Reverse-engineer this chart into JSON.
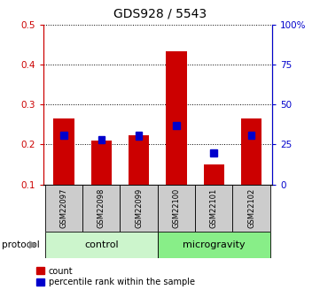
{
  "title": "GDS928 / 5543",
  "samples": [
    "GSM22097",
    "GSM22098",
    "GSM22099",
    "GSM22100",
    "GSM22101",
    "GSM22102"
  ],
  "red_values": [
    0.265,
    0.21,
    0.222,
    0.432,
    0.15,
    0.265
  ],
  "blue_values": [
    0.223,
    0.212,
    0.222,
    0.248,
    0.178,
    0.223
  ],
  "ylim_left": [
    0.1,
    0.5
  ],
  "ylim_right": [
    0,
    100
  ],
  "yticks_left": [
    0.1,
    0.2,
    0.3,
    0.4,
    0.5
  ],
  "yticks_right": [
    0,
    25,
    50,
    75,
    100
  ],
  "ytick_labels_right": [
    "0",
    "25",
    "50",
    "75",
    "100%"
  ],
  "red_color": "#cc0000",
  "blue_color": "#0000cc",
  "bar_bottom": 0.1,
  "bar_width": 0.55,
  "control_color": "#ccf5cc",
  "microgravity_color": "#88ee88",
  "sample_bg_color": "#cccccc",
  "legend_count": "count",
  "legend_prank": "percentile rank within the sample",
  "protocol_label": "protocol",
  "title_fontsize": 10
}
